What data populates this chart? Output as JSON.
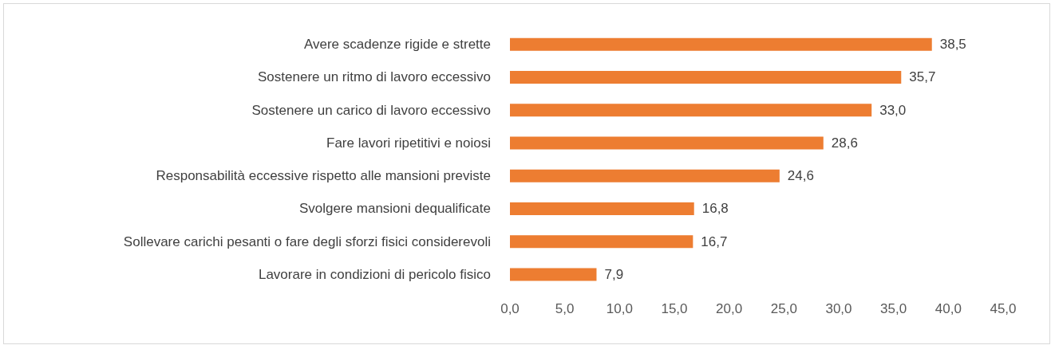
{
  "chart_data": {
    "type": "bar",
    "orientation": "horizontal",
    "categories": [
      "Avere scadenze rigide e strette",
      "Sostenere un ritmo di lavoro eccessivo",
      "Sostenere un carico di lavoro eccessivo",
      "Fare lavori ripetitivi e noiosi",
      "Responsabilità eccessive rispetto alle mansioni previste",
      "Svolgere mansioni dequalificate",
      "Sollevare carichi pesanti o fare degli sforzi fisici considerevoli",
      "Lavorare in condizioni di pericolo fisico"
    ],
    "values": [
      38.5,
      35.7,
      33.0,
      28.6,
      24.6,
      16.8,
      16.7,
      7.9
    ],
    "value_labels": [
      "38,5",
      "35,7",
      "33,0",
      "28,6",
      "24,6",
      "16,8",
      "16,7",
      "7,9"
    ],
    "color": "#ed7d31",
    "xlim": [
      0,
      45
    ],
    "xticks": [
      {
        "value": 0,
        "label": "0,0"
      },
      {
        "value": 5,
        "label": "5,0"
      },
      {
        "value": 10,
        "label": "10,0"
      },
      {
        "value": 15,
        "label": "15,0"
      },
      {
        "value": 20,
        "label": "20,0"
      },
      {
        "value": 25,
        "label": "25,0"
      },
      {
        "value": 30,
        "label": "30,0"
      },
      {
        "value": 35,
        "label": "35,0"
      },
      {
        "value": 40,
        "label": "40,0"
      },
      {
        "value": 45,
        "label": "45,0"
      }
    ],
    "grid": false
  }
}
